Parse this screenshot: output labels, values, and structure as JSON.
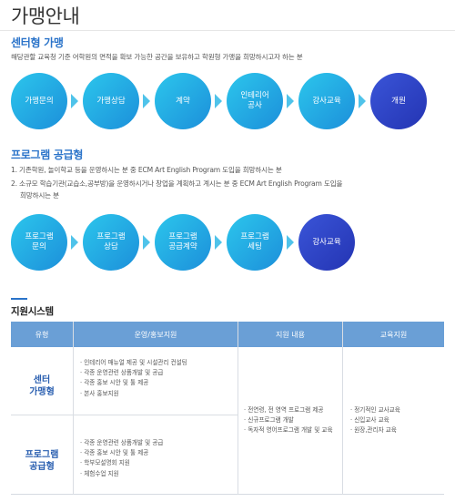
{
  "page": {
    "title": "가맹안내"
  },
  "center": {
    "title": "센터형 가맹",
    "description": "해당관할 교육청 기준 어학원의 면적을 확보 가능한 공간을 보유하고 학원형 가맹을 희망하시고자 하는 분",
    "steps": [
      {
        "label": "가맹문의"
      },
      {
        "label": "가맹상담"
      },
      {
        "label": "계약"
      },
      {
        "label": "인테리어\n공사"
      },
      {
        "label": "강사교육"
      },
      {
        "label": "개원"
      }
    ]
  },
  "program": {
    "title": "프로그램 공급형",
    "description_1": "1. 기존학원, 놀이학교 등을 운영하시는 분 중 ECM Art English Program 도입을 희망하시는 분",
    "description_2a": "2. 소규모 학습기관(교습소,공부방)을 운영하시거나 창업을 계획하고 계시는 분 중 ECM Art English Program 도입을",
    "description_2b": "희망하시는 분",
    "steps": [
      {
        "label": "프로그램\n문의"
      },
      {
        "label": "프로그램\n상담"
      },
      {
        "label": "프로그램\n공급계약"
      },
      {
        "label": "프로그램\n세팅"
      },
      {
        "label": "강사교육"
      }
    ]
  },
  "support": {
    "title": "지원시스템",
    "headers": {
      "type": "유형",
      "operation": "운영/홍보지원",
      "content": "지원 내용",
      "education": "교육지원"
    },
    "rows": [
      {
        "type": "센터\n가맹형",
        "operation": [
          "인테리어 매뉴얼 제공 및 시설관리 컨설팅",
          "각종 운영관련 상품개발 및 공급",
          "각종 홍보 시안 및 툴 제공",
          "본사 홍보지원"
        ]
      },
      {
        "type": "프로그램\n공급형",
        "operation": [
          "각종 운영관련 상품개발 및 공급",
          "각종 홍보 시안 및 툴 제공",
          "학부모설명회 지원",
          "체험수업 지원"
        ]
      }
    ],
    "content_items": [
      "전연령, 전 영역 프로그램 제공",
      "신규프로그램 개발",
      "독자적 영어프로그램 개발 및 교육"
    ],
    "education_items": [
      "정기적인 교사교육",
      "신입교사 교육",
      "원장,관리자 교육"
    ]
  }
}
